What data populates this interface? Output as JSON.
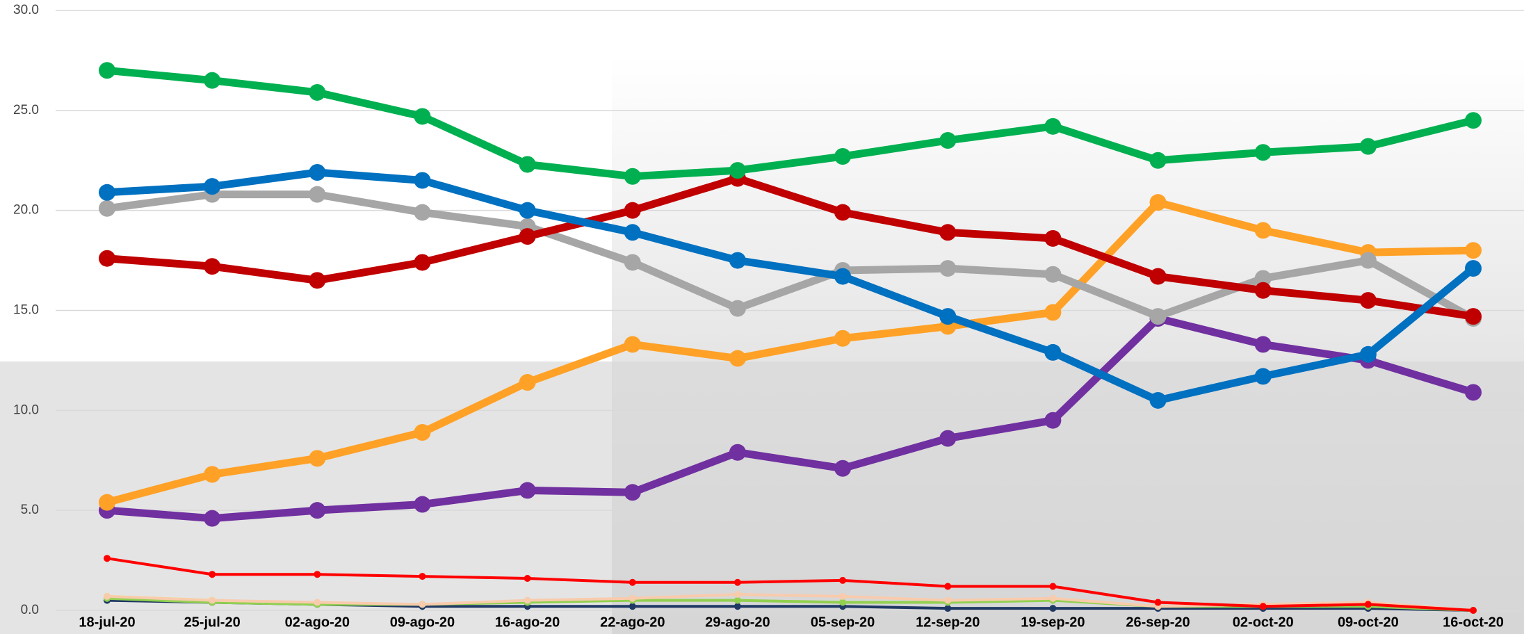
{
  "chart_data": {
    "type": "line",
    "categories": [
      "18-jul-20",
      "25-jul-20",
      "02-ago-20",
      "09-ago-20",
      "16-ago-20",
      "22-ago-20",
      "29-ago-20",
      "05-sep-20",
      "12-sep-20",
      "19-sep-20",
      "26-sep-20",
      "02-oct-20",
      "09-oct-20",
      "16-oct-20"
    ],
    "ylim": [
      0,
      30
    ],
    "yticks": [
      {
        "value": 0,
        "label": "0.0"
      },
      {
        "value": 5,
        "label": "5.0"
      },
      {
        "value": 10,
        "label": "10.0"
      },
      {
        "value": 15,
        "label": "15.0"
      },
      {
        "value": 20,
        "label": "20.0"
      },
      {
        "value": 25,
        "label": "25.0"
      },
      {
        "value": 30,
        "label": "30.0"
      }
    ],
    "grid": true,
    "series": [
      {
        "color": "#00b050",
        "values": [
          27.0,
          26.5,
          25.9,
          24.7,
          22.3,
          21.7,
          22.0,
          22.7,
          23.5,
          24.2,
          22.5,
          22.9,
          23.2,
          24.5
        ]
      },
      {
        "color": "#0070c0",
        "values": [
          20.9,
          21.2,
          21.9,
          21.5,
          20.0,
          18.9,
          17.5,
          16.7,
          14.7,
          12.9,
          10.5,
          11.7,
          12.8,
          17.1
        ]
      },
      {
        "color": "#c00000",
        "values": [
          17.6,
          17.2,
          16.5,
          17.4,
          18.7,
          20.0,
          21.6,
          19.9,
          18.9,
          18.6,
          16.7,
          16.0,
          15.5,
          14.7
        ]
      },
      {
        "color": "#a6a6a6",
        "values": [
          20.1,
          20.8,
          20.8,
          19.9,
          19.2,
          17.4,
          15.1,
          17.0,
          17.1,
          16.8,
          14.7,
          16.6,
          17.5,
          14.6
        ]
      },
      {
        "color": "#ffa126",
        "values": [
          5.4,
          6.8,
          7.6,
          8.9,
          11.4,
          13.3,
          12.6,
          13.6,
          14.2,
          14.9,
          20.4,
          19.0,
          17.9,
          18.0
        ]
      },
      {
        "color": "#7030a0",
        "values": [
          5.0,
          4.6,
          5.0,
          5.3,
          6.0,
          5.9,
          7.9,
          7.1,
          8.6,
          9.5,
          14.6,
          13.3,
          12.5,
          10.9
        ]
      },
      {
        "color": "#ff0000",
        "values": [
          2.6,
          1.8,
          1.8,
          1.7,
          1.6,
          1.4,
          1.4,
          1.5,
          1.2,
          1.2,
          0.4,
          0.2,
          0.3,
          0.0
        ]
      },
      {
        "color": "#f8cbad",
        "values": [
          0.7,
          0.5,
          0.4,
          0.3,
          0.5,
          0.6,
          0.8,
          0.7,
          0.5,
          0.6,
          0.2,
          0.3,
          0.4,
          0.0
        ]
      },
      {
        "color": "#92d050",
        "values": [
          0.6,
          0.4,
          0.3,
          0.3,
          0.4,
          0.5,
          0.5,
          0.4,
          0.4,
          0.5,
          0.2,
          0.2,
          0.2,
          0.0
        ]
      },
      {
        "color": "#1f3864",
        "values": [
          0.5,
          0.4,
          0.3,
          0.2,
          0.2,
          0.2,
          0.2,
          0.2,
          0.1,
          0.1,
          0.1,
          0.1,
          0.1,
          0.0
        ]
      },
      {
        "color": "#ffff00",
        "values": [
          0.7,
          0.5,
          null,
          null,
          null,
          null,
          null,
          null,
          null,
          null,
          null,
          null,
          null,
          null
        ]
      }
    ]
  }
}
